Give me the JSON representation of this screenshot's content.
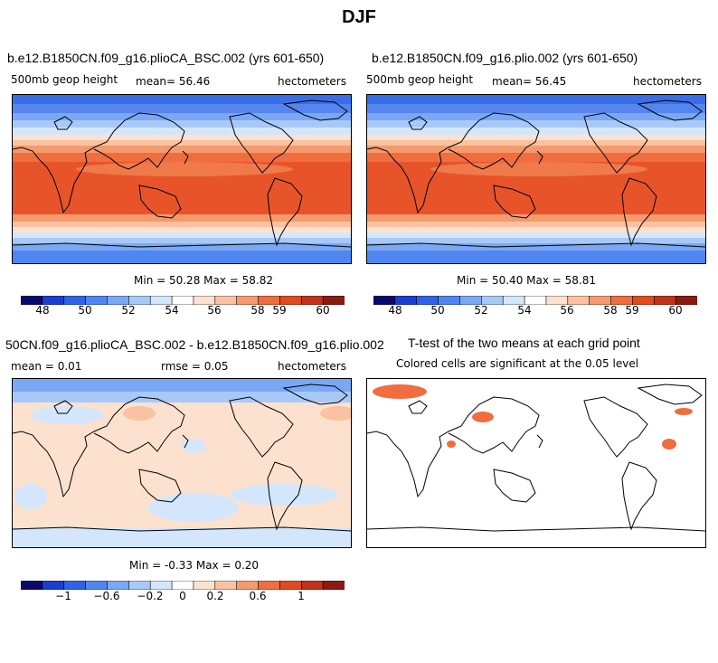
{
  "page_title": "DJF",
  "panels": [
    {
      "title": "b.e12.B1850CN.f09_g16.plioCA_BSC.002 (yrs 601-650)",
      "left_label": "500mb geop height",
      "center_label": "mean=   56.46",
      "right_label": "hectometers",
      "minmax": "Min =   50.28 Max =   58.82"
    },
    {
      "title": "b.e12.B1850CN.f09_g16.plio.002 (yrs 601-650)",
      "left_label": "500mb geop height",
      "center_label": "mean=   56.45",
      "right_label": "hectometers",
      "minmax": "Min =   50.40 Max =   58.81"
    },
    {
      "title": "50CN.f09_g16.plioCA_BSC.002 - b.e12.B1850CN.f09_g16.plio.002",
      "left_label": "mean =    0.01",
      "center_label": "rmse =    0.05",
      "right_label": "hectometers",
      "minmax": "Min =  -0.33 Max =    0.20"
    },
    {
      "title": "T-test of the two means at each grid point",
      "subtitle": "Colored cells are significant at the 0.05 level"
    }
  ],
  "colorbars": {
    "absolute_ticks": [
      "48",
      "50",
      "52",
      "54",
      "56",
      "58",
      "59",
      "60"
    ],
    "difference_ticks": [
      "−1",
      "−0.6",
      "−0.2",
      "0",
      "0.2",
      "0.6",
      "1"
    ],
    "colors": [
      "#0a0a6e",
      "#1a3fd0",
      "#2f62e6",
      "#4f86f0",
      "#7aa8f5",
      "#a8c9f8",
      "#d4e6fb",
      "#ffffff",
      "#fde1cf",
      "#fac2a2",
      "#f59a6d",
      "#ef6d3e",
      "#e14b20",
      "#c0321a",
      "#8b1a10"
    ]
  },
  "chart_data": [
    {
      "type": "heatmap",
      "title": "b.e12.B1850CN.f09_g16.plioCA_BSC.002 (yrs 601-650)",
      "variable": "500mb geop height",
      "units": "hectometers",
      "mean": 56.46,
      "min": 50.28,
      "max": 58.82,
      "colorbar_ticks": [
        48,
        50,
        52,
        54,
        56,
        58,
        59,
        60
      ]
    },
    {
      "type": "heatmap",
      "title": "b.e12.B1850CN.f09_g16.plio.002 (yrs 601-650)",
      "variable": "500mb geop height",
      "units": "hectometers",
      "mean": 56.45,
      "min": 50.4,
      "max": 58.81,
      "colorbar_ticks": [
        48,
        50,
        52,
        54,
        56,
        58,
        59,
        60
      ]
    },
    {
      "type": "heatmap",
      "title": "50CN.f09_g16.plioCA_BSC.002 - b.e12.B1850CN.f09_g16.plio.002",
      "units": "hectometers",
      "mean": 0.01,
      "rmse": 0.05,
      "min": -0.33,
      "max": 0.2,
      "colorbar_ticks": [
        -1,
        -0.6,
        -0.2,
        0,
        0.2,
        0.6,
        1
      ]
    },
    {
      "type": "heatmap",
      "title": "T-test of the two means at each grid point",
      "subtitle": "Colored cells are significant at the 0.05 level",
      "significance_level": 0.05
    }
  ]
}
